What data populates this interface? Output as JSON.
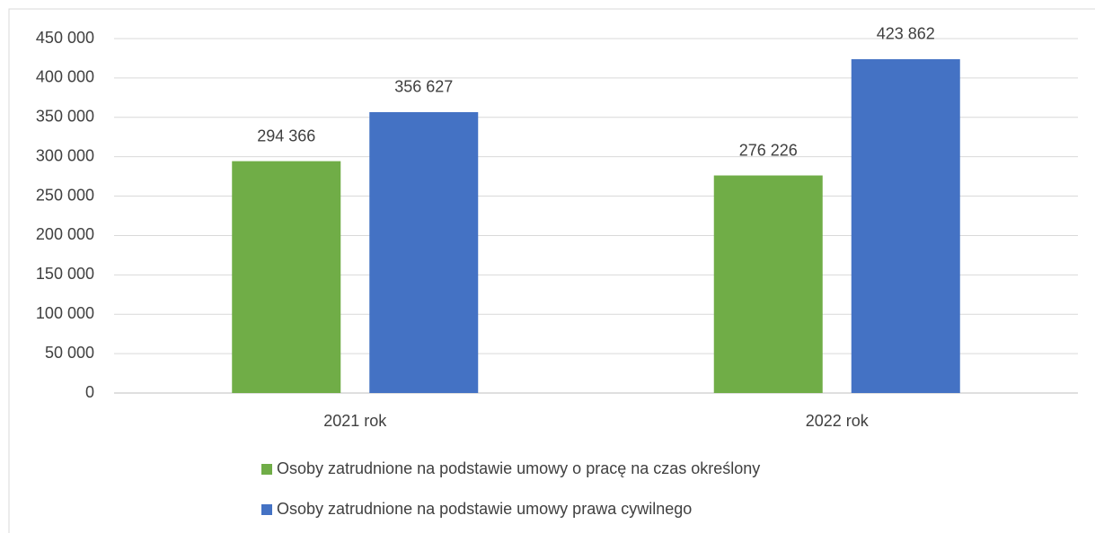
{
  "chart_data": {
    "type": "bar",
    "categories": [
      "2021 rok",
      "2022 rok"
    ],
    "series": [
      {
        "name": "Osoby zatrudnione na podstawie umowy o pracę na czas określony",
        "color": "#70ad47",
        "values": [
          294366,
          276226
        ],
        "value_labels": [
          "294 366",
          "276 226"
        ]
      },
      {
        "name": "Osoby zatrudnione na podstawie umowy prawa cywilnego",
        "color": "#4472c4",
        "values": [
          356627,
          423862
        ],
        "value_labels": [
          "356 627",
          "423 862"
        ]
      }
    ],
    "ylim": [
      0,
      450000
    ],
    "yticks": [
      0,
      {
        "value": 50000,
        "label": "50 000"
      },
      {
        "value": 100000,
        "label": "100 000"
      },
      {
        "value": 150000,
        "label": "150 000"
      },
      {
        "value": 200000,
        "label": "200 000"
      },
      {
        "value": 250000,
        "label": "250 000"
      },
      {
        "value": 300000,
        "label": "300 000"
      },
      {
        "value": 350000,
        "label": "350 000"
      },
      {
        "value": 400000,
        "label": "400 000"
      },
      {
        "value": 450000,
        "label": "450 000"
      }
    ],
    "grid": true,
    "legend": "bottom"
  }
}
